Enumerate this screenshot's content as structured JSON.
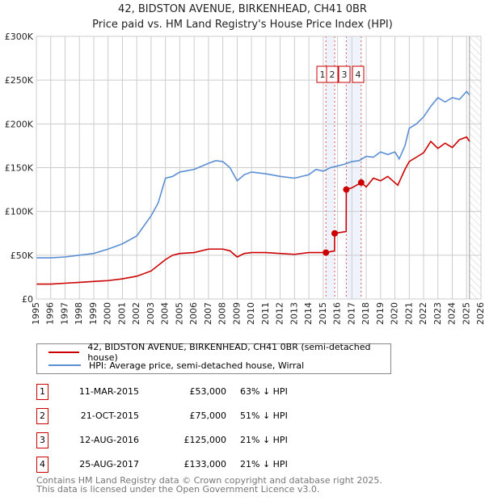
{
  "title_line1": "42, BIDSTON AVENUE, BIRKENHEAD, CH41 0BR",
  "title_line2": "Price paid vs. HM Land Registry's House Price Index (HPI)",
  "chart_data": {
    "type": "line",
    "title": "42, BIDSTON AVENUE, BIRKENHEAD, CH41 0BR — Price paid vs. HM Land Registry's House Price Index (HPI)",
    "xlim": [
      1995,
      2026
    ],
    "ylim": [
      0,
      300000
    ],
    "x_ticks": [
      "1995",
      "1996",
      "1997",
      "1998",
      "1999",
      "2000",
      "2001",
      "2002",
      "2003",
      "2004",
      "2005",
      "2006",
      "2007",
      "2008",
      "2009",
      "2010",
      "2011",
      "2012",
      "2013",
      "2014",
      "2015",
      "2016",
      "2017",
      "2018",
      "2019",
      "2020",
      "2021",
      "2022",
      "2023",
      "2024",
      "2025",
      "2026"
    ],
    "y_ticks": [
      {
        "v": 0,
        "label": "£0"
      },
      {
        "v": 50000,
        "label": "£50K"
      },
      {
        "v": 100000,
        "label": "£100K"
      },
      {
        "v": 150000,
        "label": "£150K"
      },
      {
        "v": 200000,
        "label": "£200K"
      },
      {
        "v": 250000,
        "label": "£250K"
      },
      {
        "v": 300000,
        "label": "£300K"
      }
    ],
    "grid": true,
    "forecast_hatch_from": 2025.2,
    "series": [
      {
        "name": "42, BIDSTON AVENUE, BIRKENHEAD, CH41 0BR (semi-detached house)",
        "color": "#cc0000",
        "points": [
          [
            1995,
            17000
          ],
          [
            1996,
            17000
          ],
          [
            1997,
            18000
          ],
          [
            1998,
            19000
          ],
          [
            1999,
            20000
          ],
          [
            2000,
            21000
          ],
          [
            2001,
            23000
          ],
          [
            2002,
            26000
          ],
          [
            2003,
            32000
          ],
          [
            2004,
            45000
          ],
          [
            2004.5,
            50000
          ],
          [
            2005,
            52000
          ],
          [
            2006,
            53000
          ],
          [
            2007,
            57000
          ],
          [
            2008,
            57000
          ],
          [
            2008.5,
            55000
          ],
          [
            2009,
            48000
          ],
          [
            2009.5,
            52000
          ],
          [
            2010,
            53000
          ],
          [
            2011,
            53000
          ],
          [
            2012,
            52000
          ],
          [
            2013,
            51000
          ],
          [
            2014,
            53000
          ],
          [
            2015.19,
            53000
          ],
          [
            2015.79,
            55000
          ],
          [
            2015.8,
            75000
          ],
          [
            2016.6,
            77000
          ],
          [
            2016.61,
            125000
          ],
          [
            2017,
            127000
          ],
          [
            2017.65,
            133000
          ],
          [
            2018,
            128000
          ],
          [
            2018.5,
            138000
          ],
          [
            2019,
            135000
          ],
          [
            2019.5,
            140000
          ],
          [
            2020.2,
            130000
          ],
          [
            2020.7,
            148000
          ],
          [
            2021,
            157000
          ],
          [
            2021.5,
            162000
          ],
          [
            2022,
            167000
          ],
          [
            2022.5,
            180000
          ],
          [
            2023,
            172000
          ],
          [
            2023.5,
            178000
          ],
          [
            2024,
            173000
          ],
          [
            2024.5,
            182000
          ],
          [
            2025,
            185000
          ],
          [
            2025.2,
            180000
          ]
        ]
      },
      {
        "name": "HPI: Average price, semi-detached house, Wirral",
        "color": "#5b8fd4",
        "points": [
          [
            1995,
            47000
          ],
          [
            1996,
            47000
          ],
          [
            1997,
            48000
          ],
          [
            1998,
            50000
          ],
          [
            1999,
            52000
          ],
          [
            2000,
            57000
          ],
          [
            2001,
            63000
          ],
          [
            2002,
            72000
          ],
          [
            2003,
            95000
          ],
          [
            2003.5,
            110000
          ],
          [
            2004,
            138000
          ],
          [
            2004.5,
            140000
          ],
          [
            2005,
            145000
          ],
          [
            2006,
            148000
          ],
          [
            2007,
            155000
          ],
          [
            2007.5,
            158000
          ],
          [
            2008,
            157000
          ],
          [
            2008.5,
            150000
          ],
          [
            2009,
            135000
          ],
          [
            2009.5,
            142000
          ],
          [
            2010,
            145000
          ],
          [
            2011,
            143000
          ],
          [
            2012,
            140000
          ],
          [
            2013,
            138000
          ],
          [
            2014,
            142000
          ],
          [
            2014.5,
            148000
          ],
          [
            2015,
            146000
          ],
          [
            2015.5,
            150000
          ],
          [
            2016,
            152000
          ],
          [
            2016.5,
            154000
          ],
          [
            2017,
            157000
          ],
          [
            2017.5,
            158000
          ],
          [
            2018,
            163000
          ],
          [
            2018.5,
            162000
          ],
          [
            2019,
            168000
          ],
          [
            2019.5,
            165000
          ],
          [
            2020,
            168000
          ],
          [
            2020.3,
            160000
          ],
          [
            2020.7,
            175000
          ],
          [
            2021,
            195000
          ],
          [
            2021.5,
            200000
          ],
          [
            2022,
            208000
          ],
          [
            2022.5,
            220000
          ],
          [
            2023,
            230000
          ],
          [
            2023.5,
            225000
          ],
          [
            2024,
            230000
          ],
          [
            2024.5,
            228000
          ],
          [
            2025,
            237000
          ],
          [
            2025.2,
            233000
          ]
        ]
      }
    ],
    "sales": [
      {
        "id": "1",
        "x": 2015.19,
        "price": 53000
      },
      {
        "id": "2",
        "x": 2015.8,
        "price": 75000
      },
      {
        "id": "3",
        "x": 2016.61,
        "price": 125000
      },
      {
        "id": "4",
        "x": 2017.65,
        "price": 133000
      }
    ]
  },
  "legend": [
    "42, BIDSTON AVENUE, BIRKENHEAD, CH41 0BR (semi-detached house)",
    "HPI: Average price, semi-detached house, Wirral"
  ],
  "transactions": [
    {
      "num": "1",
      "date": "11-MAR-2015",
      "price": "£53,000",
      "hpi": "63% ↓ HPI"
    },
    {
      "num": "2",
      "date": "21-OCT-2015",
      "price": "£75,000",
      "hpi": "51% ↓ HPI"
    },
    {
      "num": "3",
      "date": "12-AUG-2016",
      "price": "£125,000",
      "hpi": "21% ↓ HPI"
    },
    {
      "num": "4",
      "date": "25-AUG-2017",
      "price": "£133,000",
      "hpi": "21% ↓ HPI"
    }
  ],
  "footer_line1": "Contains HM Land Registry data © Crown copyright and database right 2025.",
  "footer_line2": "This data is licensed under the Open Government Licence v3.0."
}
